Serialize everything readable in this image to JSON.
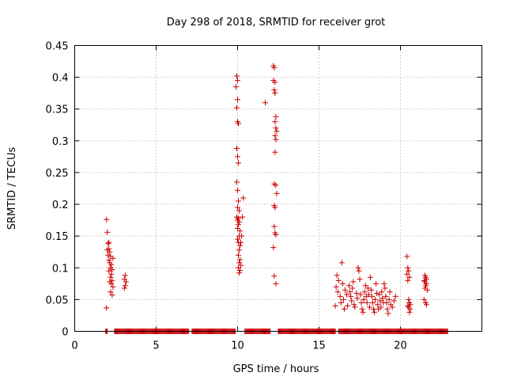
{
  "chart_data": {
    "type": "scatter",
    "title": "Day 298 of 2018, SRMTID for receiver grot",
    "xlabel": "GPS time / hours",
    "ylabel": "SRMTID / TECUs",
    "xlim": [
      0,
      25
    ],
    "ylim": [
      0,
      0.45
    ],
    "x_ticks": [
      "0",
      "5",
      "10",
      "15",
      "20"
    ],
    "y_ticks": [
      "0",
      "0.05",
      "0.1",
      "0.15",
      "0.2",
      "0.25",
      "0.3",
      "0.35",
      "0.4",
      "0.45"
    ],
    "grid": true,
    "marker": "+",
    "color": "#cc0000",
    "series": [
      {
        "points": [
          [
            1.95,
            0.176
          ],
          [
            2.0,
            0.156
          ],
          [
            2.05,
            0.138
          ],
          [
            2.1,
            0.13
          ],
          [
            2.0,
            0.128
          ],
          [
            2.15,
            0.125
          ],
          [
            2.05,
            0.12
          ],
          [
            2.2,
            0.118
          ],
          [
            2.1,
            0.112
          ],
          [
            2.15,
            0.108
          ],
          [
            2.25,
            0.105
          ],
          [
            2.2,
            0.1
          ],
          [
            2.3,
            0.097
          ],
          [
            2.1,
            0.095
          ],
          [
            2.25,
            0.09
          ],
          [
            2.2,
            0.085
          ],
          [
            2.3,
            0.08
          ],
          [
            2.15,
            0.078
          ],
          [
            2.25,
            0.075
          ],
          [
            2.35,
            0.07
          ],
          [
            2.2,
            0.062
          ],
          [
            2.3,
            0.057
          ],
          [
            2.1,
            0.14
          ],
          [
            2.35,
            0.115
          ],
          [
            1.95,
            0.037
          ],
          [
            3.1,
            0.088
          ],
          [
            3.05,
            0.082
          ],
          [
            3.15,
            0.078
          ],
          [
            3.1,
            0.072
          ],
          [
            3.05,
            0.068
          ],
          [
            9.95,
            0.402
          ],
          [
            10.0,
            0.395
          ],
          [
            9.9,
            0.385
          ],
          [
            10.0,
            0.365
          ],
          [
            9.95,
            0.352
          ],
          [
            10.0,
            0.33
          ],
          [
            10.05,
            0.327
          ],
          [
            9.95,
            0.288
          ],
          [
            10.0,
            0.275
          ],
          [
            10.05,
            0.265
          ],
          [
            9.95,
            0.235
          ],
          [
            10.0,
            0.222
          ],
          [
            10.05,
            0.205
          ],
          [
            10.0,
            0.195
          ],
          [
            10.1,
            0.19
          ],
          [
            9.95,
            0.18
          ],
          [
            10.05,
            0.178
          ],
          [
            10.0,
            0.175
          ],
          [
            10.1,
            0.172
          ],
          [
            10.05,
            0.168
          ],
          [
            10.0,
            0.162
          ],
          [
            10.15,
            0.158
          ],
          [
            10.1,
            0.15
          ],
          [
            10.0,
            0.145
          ],
          [
            10.05,
            0.14
          ],
          [
            10.15,
            0.135
          ],
          [
            10.1,
            0.128
          ],
          [
            10.05,
            0.12
          ],
          [
            10.15,
            0.113
          ],
          [
            10.1,
            0.108
          ],
          [
            10.2,
            0.104
          ],
          [
            10.05,
            0.1
          ],
          [
            10.15,
            0.096
          ],
          [
            10.1,
            0.092
          ],
          [
            10.25,
            0.15
          ],
          [
            10.3,
            0.18
          ],
          [
            10.35,
            0.21
          ],
          [
            10.2,
            0.14
          ],
          [
            11.7,
            0.36
          ],
          [
            12.2,
            0.418
          ],
          [
            12.25,
            0.415
          ],
          [
            12.2,
            0.395
          ],
          [
            12.3,
            0.392
          ],
          [
            12.25,
            0.38
          ],
          [
            12.3,
            0.375
          ],
          [
            12.35,
            0.338
          ],
          [
            12.3,
            0.33
          ],
          [
            12.35,
            0.32
          ],
          [
            12.4,
            0.315
          ],
          [
            12.3,
            0.308
          ],
          [
            12.35,
            0.302
          ],
          [
            12.3,
            0.282
          ],
          [
            12.25,
            0.232
          ],
          [
            12.35,
            0.23
          ],
          [
            12.4,
            0.217
          ],
          [
            12.25,
            0.198
          ],
          [
            12.3,
            0.195
          ],
          [
            12.25,
            0.165
          ],
          [
            12.3,
            0.155
          ],
          [
            12.35,
            0.152
          ],
          [
            12.2,
            0.132
          ],
          [
            12.25,
            0.087
          ],
          [
            12.35,
            0.075
          ],
          [
            16.1,
            0.088
          ],
          [
            16.05,
            0.07
          ],
          [
            16.15,
            0.062
          ],
          [
            16.0,
            0.04
          ],
          [
            16.2,
            0.08
          ],
          [
            16.3,
            0.055
          ],
          [
            16.4,
            0.108
          ],
          [
            16.45,
            0.075
          ],
          [
            16.5,
            0.05
          ],
          [
            16.55,
            0.035
          ],
          [
            16.35,
            0.045
          ],
          [
            16.6,
            0.065
          ],
          [
            16.7,
            0.058
          ],
          [
            16.75,
            0.04
          ],
          [
            16.85,
            0.072
          ],
          [
            16.9,
            0.062
          ],
          [
            16.95,
            0.055
          ],
          [
            17.0,
            0.048
          ],
          [
            17.05,
            0.068
          ],
          [
            17.1,
            0.078
          ],
          [
            17.15,
            0.042
          ],
          [
            17.2,
            0.038
          ],
          [
            17.3,
            0.06
          ],
          [
            17.35,
            0.052
          ],
          [
            17.4,
            0.1
          ],
          [
            17.45,
            0.095
          ],
          [
            17.5,
            0.082
          ],
          [
            17.55,
            0.058
          ],
          [
            17.6,
            0.045
          ],
          [
            17.65,
            0.035
          ],
          [
            17.7,
            0.03
          ],
          [
            17.75,
            0.05
          ],
          [
            17.8,
            0.062
          ],
          [
            17.85,
            0.072
          ],
          [
            17.9,
            0.055
          ],
          [
            17.95,
            0.045
          ],
          [
            18.0,
            0.068
          ],
          [
            18.05,
            0.058
          ],
          [
            18.1,
            0.038
          ],
          [
            18.15,
            0.085
          ],
          [
            18.2,
            0.065
          ],
          [
            18.25,
            0.055
          ],
          [
            18.3,
            0.045
          ],
          [
            18.35,
            0.035
          ],
          [
            18.4,
            0.03
          ],
          [
            18.45,
            0.05
          ],
          [
            18.5,
            0.075
          ],
          [
            18.55,
            0.06
          ],
          [
            18.6,
            0.042
          ],
          [
            18.65,
            0.035
          ],
          [
            18.7,
            0.058
          ],
          [
            18.75,
            0.048
          ],
          [
            18.8,
            0.038
          ],
          [
            18.85,
            0.062
          ],
          [
            18.9,
            0.052
          ],
          [
            18.95,
            0.045
          ],
          [
            19.0,
            0.075
          ],
          [
            19.05,
            0.068
          ],
          [
            19.1,
            0.055
          ],
          [
            19.15,
            0.045
          ],
          [
            19.2,
            0.035
          ],
          [
            19.25,
            0.028
          ],
          [
            19.3,
            0.05
          ],
          [
            19.35,
            0.062
          ],
          [
            19.4,
            0.042
          ],
          [
            19.5,
            0.038
          ],
          [
            19.6,
            0.048
          ],
          [
            19.7,
            0.055
          ],
          [
            20.4,
            0.118
          ],
          [
            20.45,
            0.1
          ],
          [
            20.5,
            0.095
          ],
          [
            20.4,
            0.09
          ],
          [
            20.55,
            0.085
          ],
          [
            20.45,
            0.08
          ],
          [
            20.5,
            0.05
          ],
          [
            20.55,
            0.045
          ],
          [
            20.6,
            0.042
          ],
          [
            20.45,
            0.04
          ],
          [
            20.5,
            0.038
          ],
          [
            20.6,
            0.035
          ],
          [
            20.55,
            0.03
          ],
          [
            21.5,
            0.088
          ],
          [
            21.55,
            0.085
          ],
          [
            21.6,
            0.082
          ],
          [
            21.45,
            0.08
          ],
          [
            21.5,
            0.078
          ],
          [
            21.6,
            0.075
          ],
          [
            21.55,
            0.072
          ],
          [
            21.5,
            0.068
          ],
          [
            21.65,
            0.065
          ],
          [
            21.45,
            0.05
          ],
          [
            21.55,
            0.045
          ],
          [
            21.6,
            0.042
          ]
        ],
        "zero_spans": [
          [
            1.9,
            2.0
          ],
          [
            2.45,
            7.0
          ],
          [
            7.2,
            9.85
          ],
          [
            10.45,
            12.0
          ],
          [
            12.5,
            16.0
          ],
          [
            16.2,
            22.9
          ]
        ]
      }
    ]
  }
}
